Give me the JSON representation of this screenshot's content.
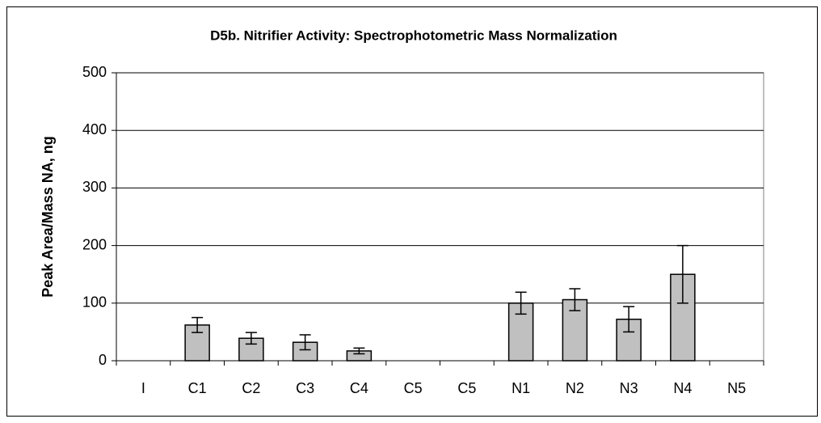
{
  "chart_data": {
    "type": "bar",
    "title": "D5b.  Nitrifier Activity:  Spectrophotometric Mass Normalization",
    "y_label": "Peak Area/Mass NA, ng",
    "categories": [
      "I",
      "C1",
      "C2",
      "C3",
      "C4",
      "C5",
      "C5",
      "N1",
      "N2",
      "N3",
      "N4",
      "N5"
    ],
    "values": [
      null,
      62,
      39,
      32,
      17,
      null,
      null,
      100,
      106,
      72,
      150,
      null
    ],
    "errors": [
      null,
      13,
      10,
      13,
      5,
      null,
      null,
      19,
      19,
      22,
      50,
      null
    ],
    "color": "#c0c0c0",
    "ylim": [
      0,
      500
    ],
    "yticks": [
      0,
      100,
      200,
      300,
      400,
      500
    ],
    "grid": true
  }
}
